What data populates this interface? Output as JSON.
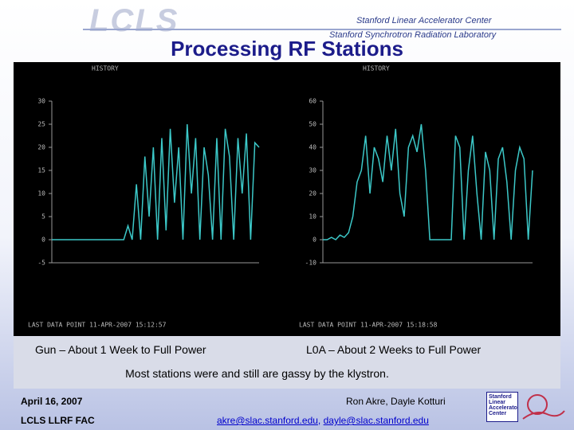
{
  "header": {
    "logo": "LCLS",
    "org1": "Stanford Linear Accelerator Center",
    "org2": "Stanford Synchrotron Radiation Laboratory"
  },
  "title": "Processing RF Stations",
  "plots": [
    {
      "type": "line",
      "label": "HISTORY",
      "footer": "LAST DATA POINT 11-APR-2007 15:12:57",
      "color": "#3cc8c8",
      "ylim": [
        -5,
        30
      ],
      "yticks": [
        -5,
        0,
        5,
        10,
        15,
        20,
        25,
        30
      ],
      "values": [
        0,
        0,
        0,
        0,
        0,
        0,
        0,
        0,
        0,
        0,
        0,
        0,
        0,
        0,
        0,
        0,
        0,
        0,
        3,
        0,
        12,
        0,
        18,
        5,
        20,
        0,
        22,
        2,
        24,
        8,
        20,
        0,
        25,
        10,
        22,
        0,
        20,
        14,
        0,
        22,
        0,
        24,
        18,
        0,
        22,
        10,
        23,
        0,
        21,
        20
      ]
    },
    {
      "type": "line",
      "label": "HISTORY",
      "footer": "LAST DATA POINT 11-APR-2007 15:18:58",
      "color": "#3cc8c8",
      "ylim": [
        -10,
        60
      ],
      "yticks": [
        -10,
        0,
        10,
        20,
        30,
        40,
        50,
        60
      ],
      "values": [
        0,
        0,
        1,
        0,
        2,
        1,
        3,
        10,
        25,
        30,
        45,
        20,
        40,
        35,
        25,
        45,
        30,
        48,
        20,
        10,
        40,
        45,
        38,
        50,
        30,
        0,
        0,
        0,
        0,
        0,
        0,
        45,
        40,
        0,
        30,
        45,
        20,
        0,
        38,
        30,
        0,
        35,
        40,
        25,
        0,
        30,
        40,
        35,
        0,
        30
      ]
    }
  ],
  "captions": [
    "Gun – About 1 Week to Full Power",
    "L0A – About 2 Weeks to Full Power"
  ],
  "note": "Most stations were and still are gassy by the klystron.",
  "footer": {
    "date": "April 16, 2007",
    "group": "LCLS LLRF FAC",
    "authors": "Ron Akre, Dayle Kotturi",
    "email1": "akre@slac.stanford.edu",
    "sep": ",",
    "email2": "dayle@slac.stanford.edu",
    "badge": "Stanford Linear Accelerator Center"
  }
}
